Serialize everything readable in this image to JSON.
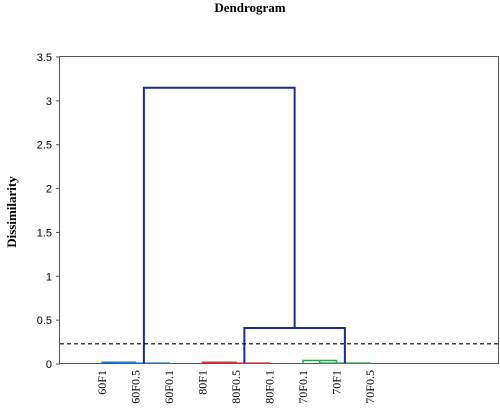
{
  "chart_data": {
    "type": "dendrogram",
    "title": "Dendrogram",
    "ylabel": "Dissimilarity",
    "xlabel": "",
    "ylim": [
      0,
      3.5
    ],
    "yticks": [
      "0",
      "0.5",
      "1",
      "1.5",
      "2",
      "2.5",
      "3",
      "3.5"
    ],
    "leaves": [
      "60F1",
      "60F0.5",
      "60F0.1",
      "80F1",
      "80F0.5",
      "80F0.1",
      "70F0.1",
      "70F1",
      "70F0.5"
    ],
    "cut_line": 0.23,
    "clusters": [
      {
        "color": "#1f77d0",
        "leaves": [
          0,
          1,
          2
        ]
      },
      {
        "color": "#e03030",
        "leaves": [
          3,
          4,
          5
        ]
      },
      {
        "color": "#2e9e4f",
        "leaves": [
          6,
          7,
          8
        ]
      }
    ],
    "merges": [
      {
        "left": 0,
        "right": 1,
        "height": 0.02,
        "color": "#1f77d0"
      },
      {
        "left": 9,
        "right": 2,
        "height": 0.01,
        "color": "#1f77d0"
      },
      {
        "left": 3,
        "right": 4,
        "height": 0.02,
        "color": "#e03030"
      },
      {
        "left": 11,
        "right": 5,
        "height": 0.01,
        "color": "#e03030"
      },
      {
        "left": 6,
        "right": 7,
        "height": 0.04,
        "color": "#2e9e4f"
      },
      {
        "left": 13,
        "right": 8,
        "height": 0.01,
        "color": "#2e9e4f"
      },
      {
        "left": 12,
        "right": 14,
        "height": 0.41,
        "color": "#1f2a99"
      },
      {
        "left": 10,
        "right": 15,
        "height": 3.15,
        "color": "#1f2a99"
      }
    ],
    "grid": false,
    "legend": "none"
  }
}
